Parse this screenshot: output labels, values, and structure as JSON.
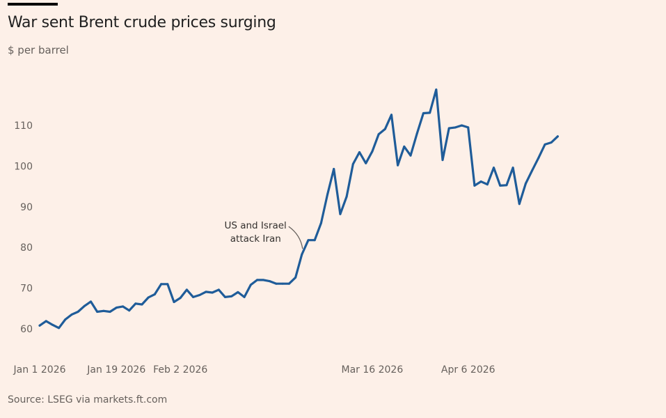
{
  "header": {
    "title": "War sent Brent crude prices surging",
    "subtitle": "$ per barrel"
  },
  "footer": {
    "source": "Source: LSEG via markets.ft.com"
  },
  "colors": {
    "background": "#fdf0e8",
    "line": "#1f5c99",
    "text": "#66605c",
    "annotation_connector": "#66605c"
  },
  "chart_data": {
    "type": "line",
    "title": "War sent Brent crude prices surging",
    "ylabel": "$ per barrel",
    "xlabel": "",
    "ylim": [
      57,
      120
    ],
    "grid": false,
    "y_ticks": [
      60,
      70,
      80,
      90,
      100,
      110
    ],
    "x_ticks": [
      {
        "label": "Jan 1 2026",
        "index": 0
      },
      {
        "label": "Jan 19 2026",
        "index": 12
      },
      {
        "label": "Feb 2 2026",
        "index": 22
      },
      {
        "label": "Mar 16 2026",
        "index": 52
      },
      {
        "label": "Apr 6 2026",
        "index": 67
      }
    ],
    "series": [
      {
        "name": "Brent crude",
        "values": [
          60.8,
          61.9,
          61.0,
          60.2,
          62.3,
          63.5,
          64.2,
          65.6,
          66.7,
          64.2,
          64.4,
          64.2,
          65.2,
          65.5,
          64.5,
          66.2,
          66.0,
          67.7,
          68.5,
          71.0,
          71.0,
          66.6,
          67.6,
          69.6,
          67.8,
          68.3,
          69.1,
          68.9,
          69.6,
          67.8,
          68.0,
          69.0,
          67.8,
          70.8,
          72.0,
          72.0,
          71.7,
          71.1,
          71.1,
          71.1,
          72.6,
          78.3,
          81.8,
          81.8,
          86.0,
          93.0,
          99.3,
          88.2,
          92.5,
          100.5,
          103.4,
          100.7,
          103.6,
          107.8,
          109.1,
          112.6,
          100.2,
          104.8,
          102.6,
          108.0,
          113.0,
          113.1,
          118.8,
          101.5,
          109.3,
          109.5,
          110.0,
          109.5,
          95.2,
          96.2,
          95.5,
          99.6,
          95.2,
          95.3,
          99.6,
          90.7,
          95.7,
          98.9,
          102.0,
          105.3,
          105.8,
          107.3
        ]
      }
    ],
    "annotations": [
      {
        "text_lines": [
          "US and Israel",
          "attack Iran"
        ],
        "index": 41
      }
    ],
    "legend": "none"
  }
}
